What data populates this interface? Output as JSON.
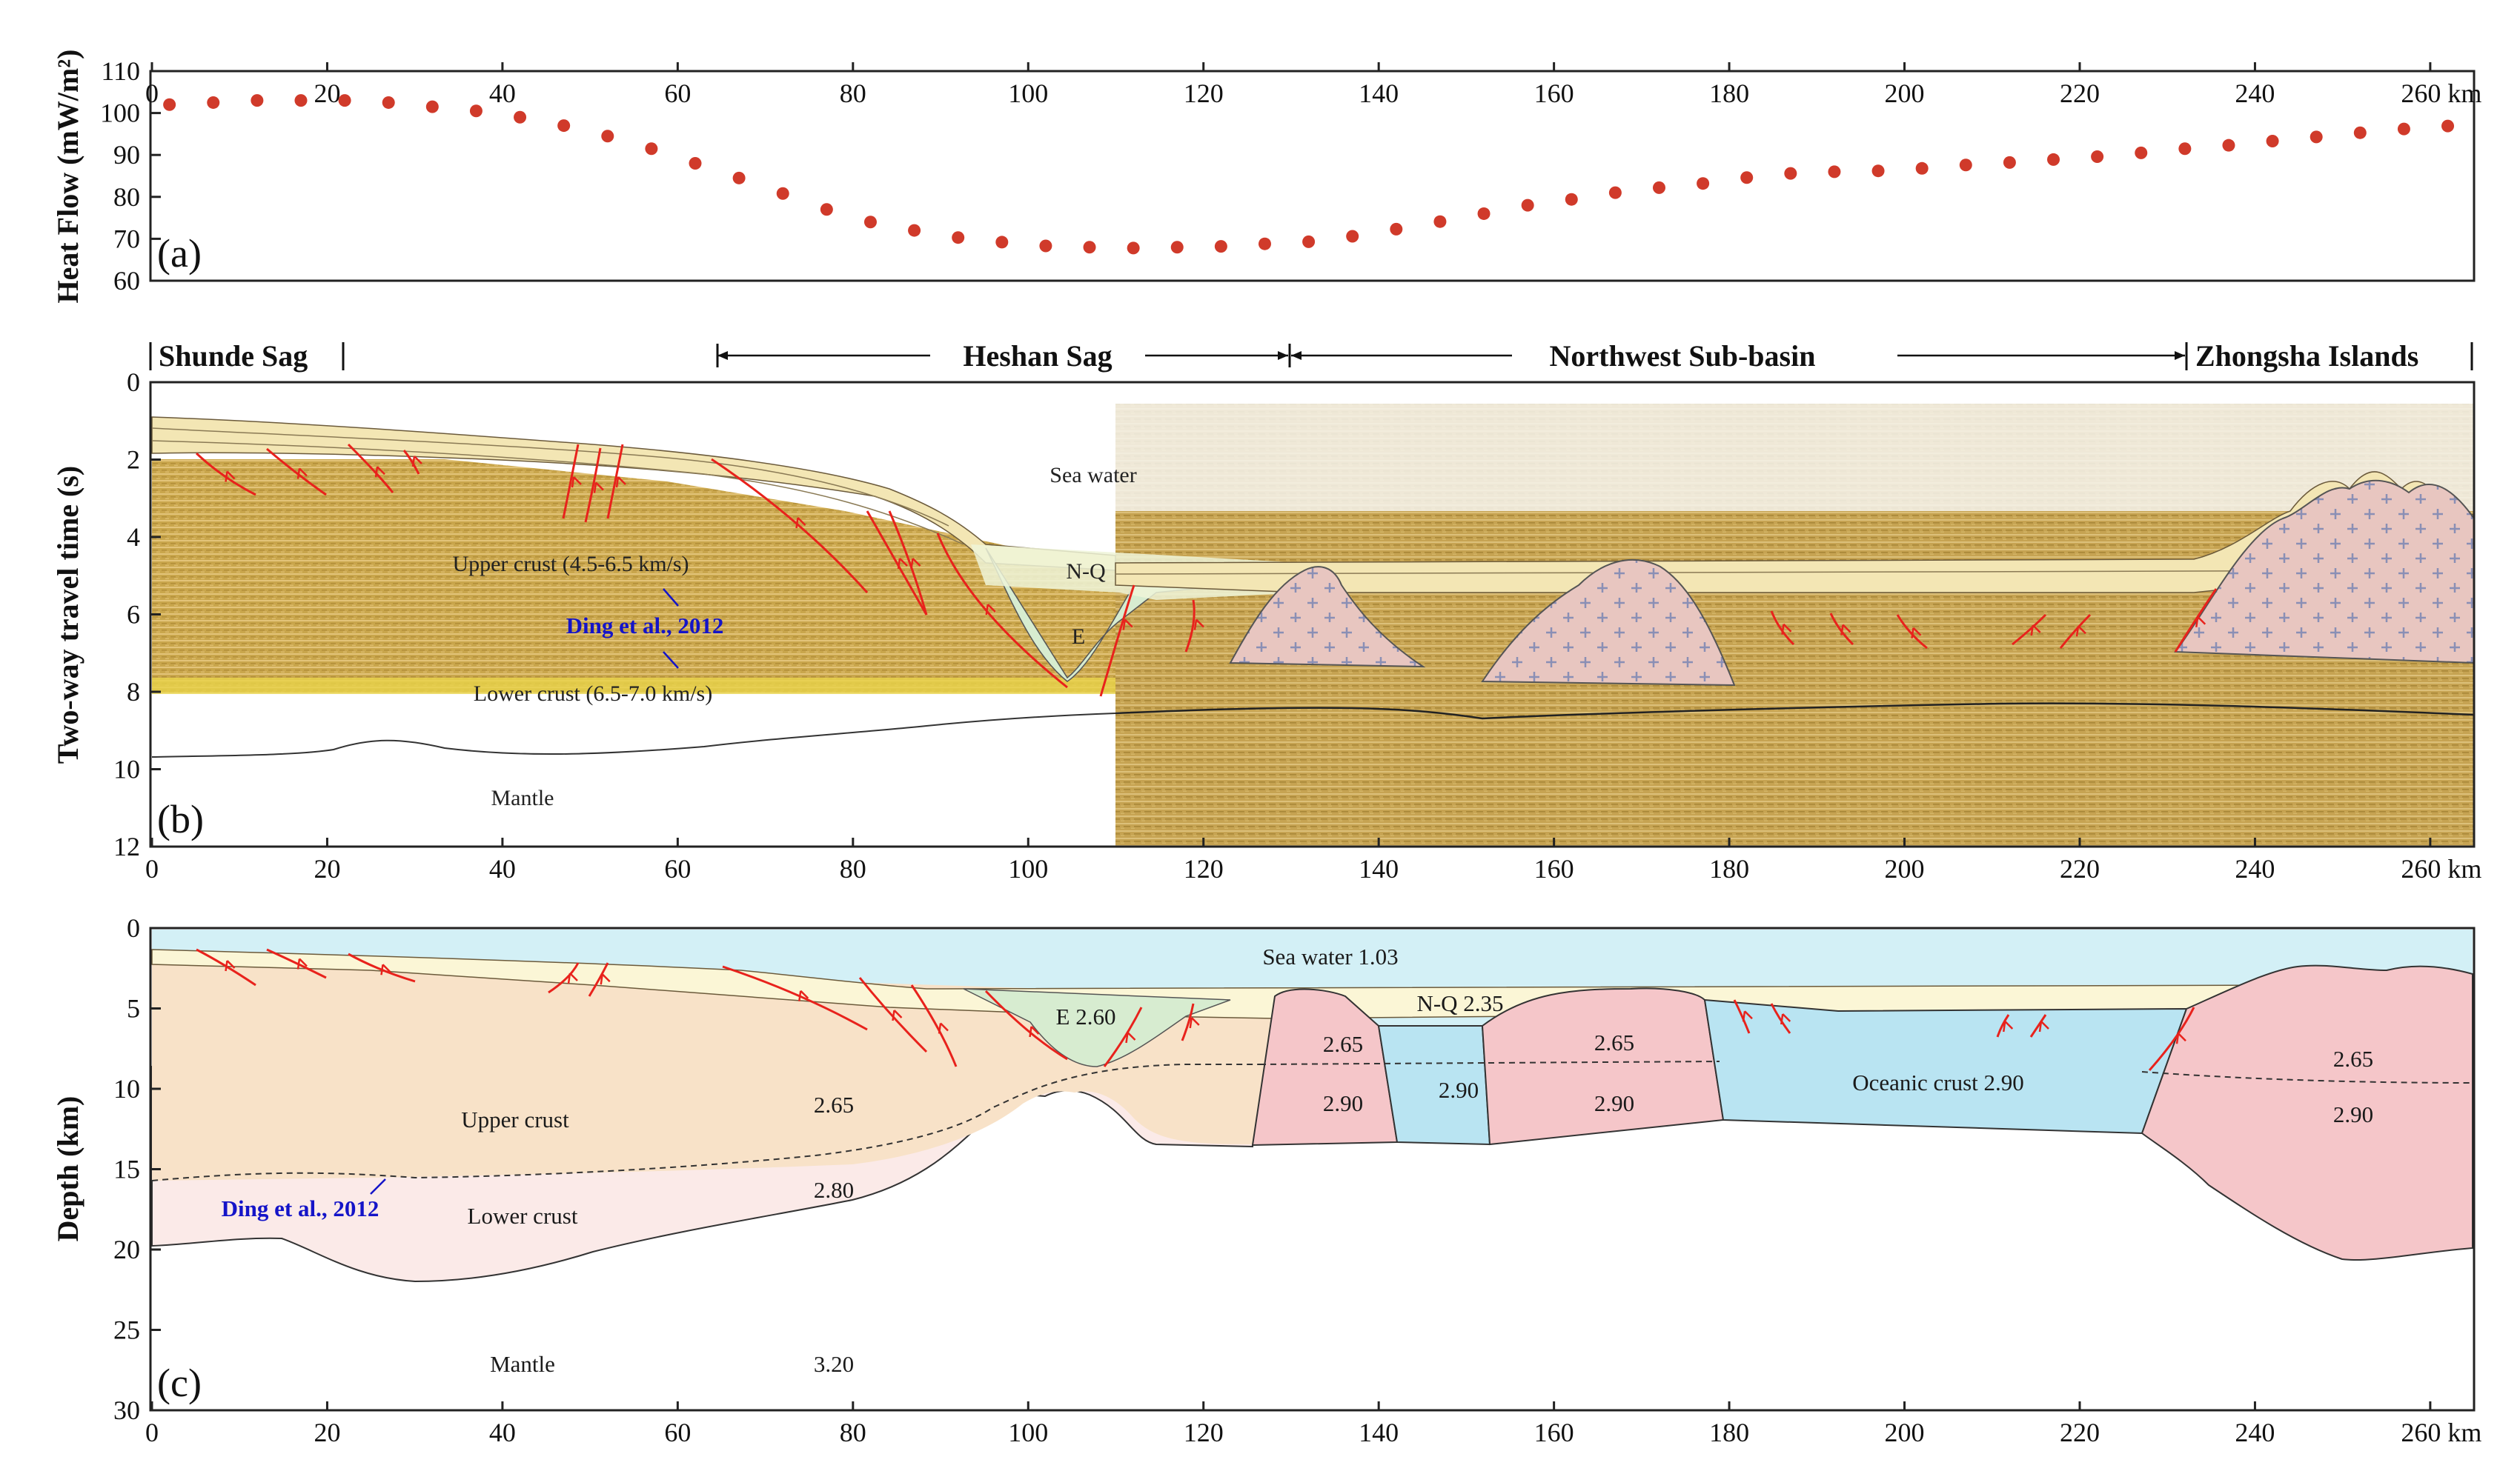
{
  "colors": {
    "dot": "#d03a2a",
    "fault": "#e8221c",
    "citation": "#1414c8",
    "upper_crust_c": "#f8e2c8",
    "lower_crust_c": "#fbeae8",
    "sea_c": "#d3f0f6",
    "nq_c": "#fbf6d6",
    "eocene_c": "#d9eecf",
    "volcanic_c": "#f5c6c9",
    "oceanic_c": "#b9e4f2",
    "seismic": "#c9a64c"
  },
  "panel_a": {
    "tag": "(a)",
    "ylabel": "Heat Flow (mW/m²)",
    "yticks": [
      "60",
      "70",
      "80",
      "90",
      "100",
      "110"
    ],
    "xticks": [
      "0",
      "20",
      "40",
      "60",
      "80",
      "100",
      "120",
      "140",
      "160",
      "180",
      "200",
      "220",
      "240",
      "260 km"
    ]
  },
  "chart_data": {
    "type": "scatter",
    "xlabel": "km",
    "ylabel": "Heat Flow (mW/m²)",
    "ylim": [
      60,
      110
    ],
    "xlim": [
      0,
      265
    ],
    "x": [
      2,
      7,
      12,
      17,
      22,
      27,
      32,
      37,
      42,
      47,
      52,
      57,
      62,
      67,
      72,
      77,
      82,
      87,
      92,
      97,
      102,
      107,
      112,
      117,
      122,
      127,
      132,
      137,
      142,
      147,
      152,
      157,
      162,
      167,
      172,
      177,
      182,
      187,
      192,
      197,
      202,
      207,
      212,
      217,
      222,
      227,
      232,
      237,
      242,
      247,
      252,
      257,
      262
    ],
    "values": [
      102,
      102.5,
      103,
      103,
      103,
      102.5,
      101.5,
      100.5,
      99,
      97,
      94.5,
      91.5,
      88,
      84.5,
      80.8,
      77,
      74,
      72,
      70.3,
      69.2,
      68.3,
      68,
      67.8,
      68,
      68.2,
      68.8,
      69.3,
      70.6,
      72.3,
      74.1,
      76,
      78,
      79.4,
      81,
      82.2,
      83.2,
      84.6,
      85.6,
      86,
      86.2,
      86.8,
      87.6,
      88.2,
      88.9,
      89.6,
      90.5,
      91.5,
      92.3,
      93.3,
      94.3,
      95.3,
      96.2,
      96.9
    ]
  },
  "regions": {
    "shunde": "Shunde Sag",
    "heshan": "Heshan Sag",
    "northwest": "Northwest Sub-basin",
    "zhongsha": "Zhongsha Islands"
  },
  "panel_b": {
    "tag": "(b)",
    "ylabel": "Two-way travel time (s)",
    "yticks": [
      "0",
      "2",
      "4",
      "6",
      "8",
      "10",
      "12"
    ],
    "xticks": [
      "0",
      "20",
      "40",
      "60",
      "80",
      "100",
      "120",
      "140",
      "160",
      "180",
      "200",
      "220",
      "240",
      "260 km"
    ],
    "labels": {
      "sea_water": "Sea water",
      "upper_crust": "Upper crust (4.5-6.5 km/s)",
      "lower_crust": "Lower crust  (6.5-7.0 km/s)",
      "mantle": "Mantle",
      "nq": "N-Q",
      "e": "E",
      "ding": "Ding et al., 2012"
    }
  },
  "panel_c": {
    "tag": "(c)",
    "ylabel": "Depth (km)",
    "yticks": [
      "0",
      "5",
      "10",
      "15",
      "20",
      "25",
      "30"
    ],
    "xticks": [
      "0",
      "20",
      "40",
      "60",
      "80",
      "100",
      "120",
      "140",
      "160",
      "180",
      "200",
      "220",
      "240",
      "260 km"
    ],
    "labels": {
      "sea_water": "Sea water  1.03",
      "upper_crust": "Upper crust",
      "lower_crust": "Lower crust",
      "mantle": "Mantle",
      "e": "E  2.60",
      "nq": "N-Q  2.35",
      "d265a": "2.65",
      "d280": "2.80",
      "d320": "3.20",
      "v265a": "2.65",
      "v290a": "2.90",
      "gap290a": "2.90",
      "v265b": "2.65",
      "v290b": "2.90",
      "oceanic": "Oceanic crust  2.90",
      "z265": "2.65",
      "z290": "2.90",
      "ding": "Ding et al., 2012"
    }
  }
}
